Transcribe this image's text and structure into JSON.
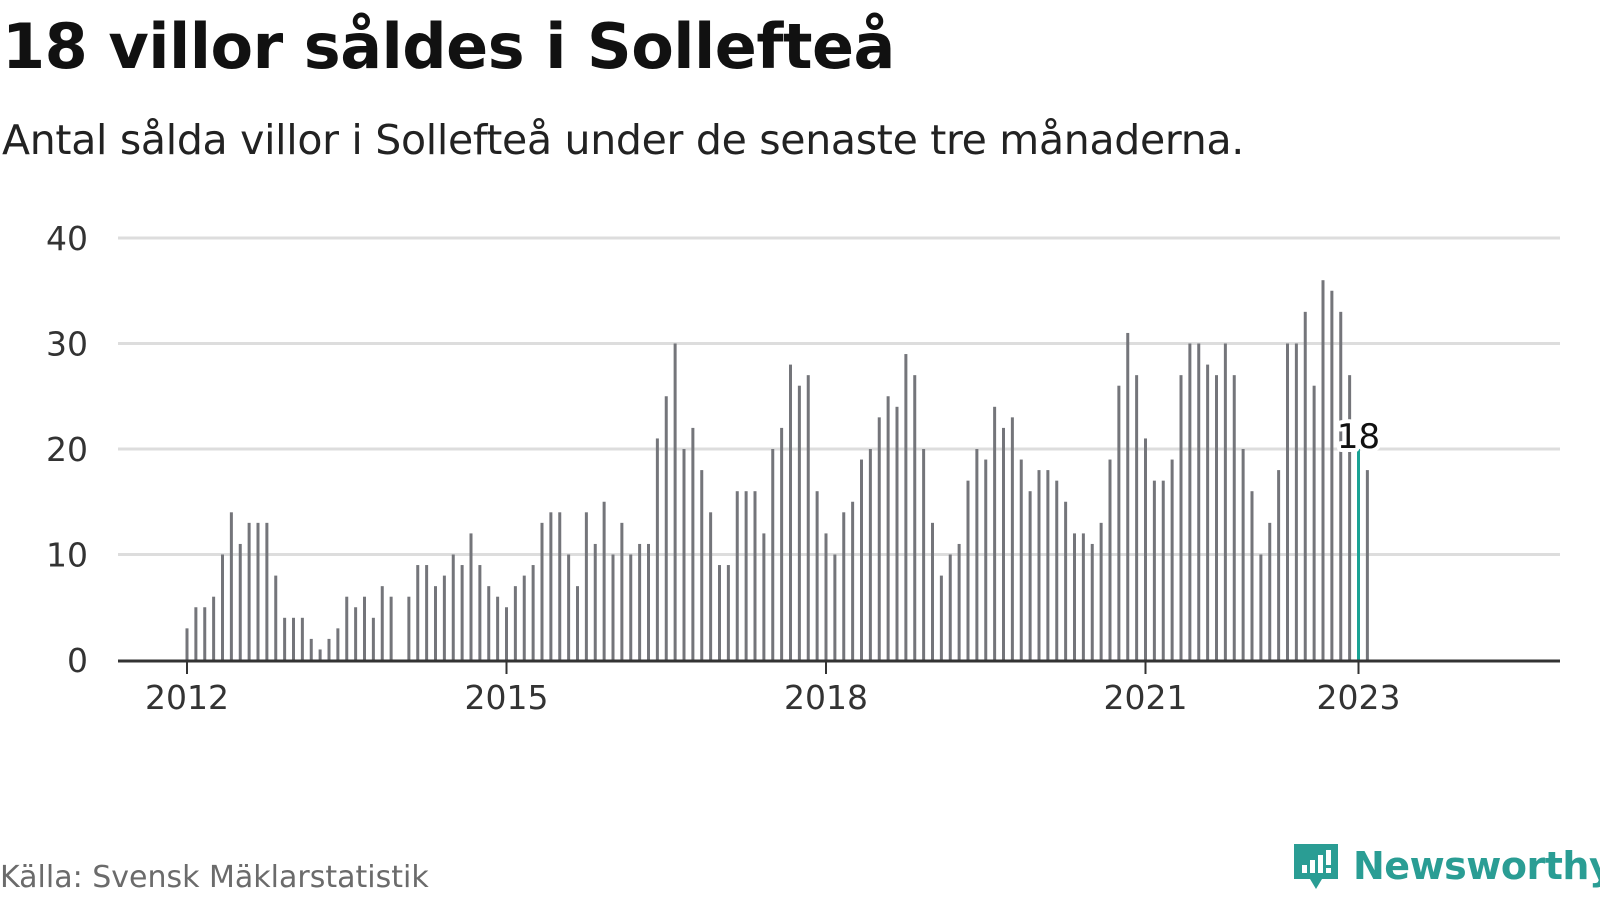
{
  "header": {
    "title": "18 villor såldes i Sollefteå",
    "subtitle": "Antal sålda villor i Sollefteå under de senaste tre månaderna."
  },
  "footer": {
    "source": "Källa: Svensk Mäklarstatistik",
    "brand": "Newsworthy",
    "brand_icon": "newsworthy-logo-icon"
  },
  "colors": {
    "bar": "#74757a",
    "highlight": "#1aa395",
    "grid": "#dddddd",
    "axis": "#333333",
    "brand": "#2a9d94"
  },
  "chart_data": {
    "type": "bar",
    "x_start": "2012-01",
    "x_end": "2023-01",
    "x_ticks": [
      "2012",
      "2015",
      "2018",
      "2021",
      "2023"
    ],
    "y_ticks": [
      "0",
      "10",
      "20",
      "30",
      "40"
    ],
    "ylim": [
      0,
      40
    ],
    "grid": true,
    "highlight": {
      "x": "2023-01",
      "value": 18,
      "label": "18"
    },
    "values": [
      3,
      5,
      5,
      6,
      10,
      14,
      11,
      13,
      13,
      13,
      8,
      4,
      4,
      4,
      2,
      1,
      2,
      3,
      6,
      5,
      6,
      4,
      7,
      6,
      0,
      6,
      9,
      9,
      7,
      8,
      10,
      9,
      12,
      9,
      7,
      6,
      5,
      7,
      8,
      9,
      13,
      14,
      14,
      10,
      7,
      14,
      11,
      15,
      10,
      13,
      10,
      11,
      11,
      21,
      25,
      30,
      20,
      22,
      18,
      14,
      9,
      9,
      16,
      16,
      16,
      12,
      20,
      22,
      28,
      26,
      27,
      16,
      12,
      10,
      14,
      15,
      19,
      20,
      23,
      25,
      24,
      29,
      27,
      20,
      13,
      8,
      10,
      11,
      17,
      20,
      19,
      24,
      22,
      23,
      19,
      16,
      18,
      18,
      17,
      15,
      12,
      12,
      11,
      13,
      19,
      26,
      31,
      27,
      21,
      17,
      17,
      19,
      27,
      30,
      30,
      28,
      27,
      30,
      27,
      20,
      16,
      10,
      13,
      18,
      30,
      30,
      33,
      26,
      36,
      35,
      33,
      27,
      20,
      18
    ]
  }
}
